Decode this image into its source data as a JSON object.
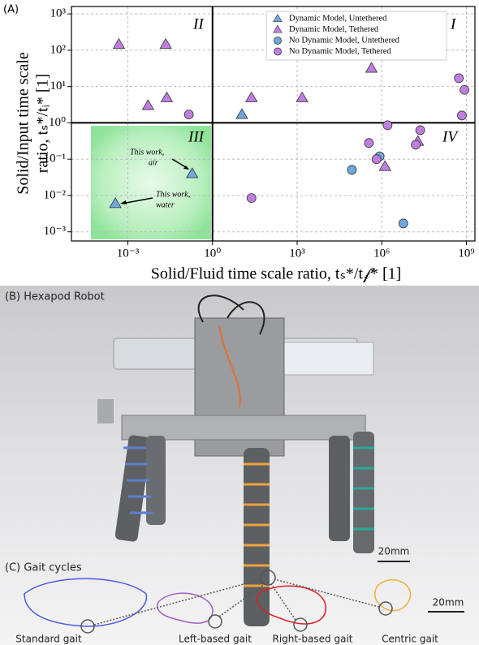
{
  "chart_data": {
    "type": "scatter",
    "panel_label": "(A)",
    "xlabel": "Solid/Fluid time scale ratio, tₛ*/t𝒻* [1]",
    "ylabel": [
      "Solid/Input time scale",
      "ratio, tₛ*/tᵢ* [1]"
    ],
    "log_x": true,
    "log_y": true,
    "grid": true,
    "xlim": [
      1e-05,
      2000000000
    ],
    "ylim": [
      0.00056,
      1600
    ],
    "xticks": [
      {
        "value": 0.001,
        "label": "10⁻³"
      },
      {
        "value": 1,
        "label": "10⁰"
      },
      {
        "value": 1000,
        "label": "10³"
      },
      {
        "value": 1000000,
        "label": "10⁶"
      },
      {
        "value": 1000000000,
        "label": "10⁹"
      }
    ],
    "yticks": [
      {
        "value": 0.001,
        "label": "10⁻³"
      },
      {
        "value": 0.01,
        "label": "10⁻²"
      },
      {
        "value": 0.1,
        "label": "10⁻¹"
      },
      {
        "value": 1,
        "label": "10⁰"
      },
      {
        "value": 10,
        "label": "10¹"
      },
      {
        "value": 100,
        "label": "10²"
      },
      {
        "value": 1000,
        "label": "10³"
      }
    ],
    "vlines": [
      1
    ],
    "hlines": [
      1
    ],
    "quadrants": [
      "I",
      "II",
      "III",
      "IV"
    ],
    "annotations": [
      "This work,",
      "air",
      "This work,",
      "water"
    ],
    "legend": "upper right",
    "series": [
      {
        "name": "Dynamic Model, Untethered",
        "marker": "triangle",
        "color": "#6fa8dc",
        "x": [
          11,
          0.19,
          0.00036
        ],
        "values": [
          1.7,
          0.04,
          0.006
        ]
      },
      {
        "name": "Dynamic Model, Tethered",
        "marker": "triangle",
        "color": "#c07fe0",
        "x": [
          0.00048,
          0.022,
          0.0052,
          0.024,
          24,
          1500,
          430000,
          1300000,
          19000000
        ],
        "values": [
          145,
          145,
          3,
          4.9,
          4.9,
          4.9,
          32,
          0.063,
          0.31
        ]
      },
      {
        "name": "No Dynamic Model, Untethered",
        "marker": "circle",
        "color": "#6fa8dc",
        "x": [
          87000,
          840000,
          5800000
        ],
        "values": [
          0.051,
          0.12,
          0.0017
        ]
      },
      {
        "name": "No Dynamic Model, Tethered",
        "marker": "circle",
        "color": "#c07fe0",
        "x": [
          0.145,
          24,
          350000,
          650000,
          1600000,
          16000000,
          23000000,
          540000000,
          850000000,
          690000000
        ],
        "values": [
          1.7,
          0.0085,
          0.28,
          0.1,
          0.86,
          0.25,
          0.63,
          17,
          8.1,
          1.6
        ]
      }
    ]
  },
  "panel_b": {
    "label": "(B) Hexapod Robot",
    "scale_bar": "20mm"
  },
  "panel_c": {
    "label": "(C) Gait cycles",
    "scale_bar": "20mm",
    "gaits": [
      "Standard gait",
      "Left-based gait",
      "Right-based gait",
      "Centric gait"
    ]
  }
}
